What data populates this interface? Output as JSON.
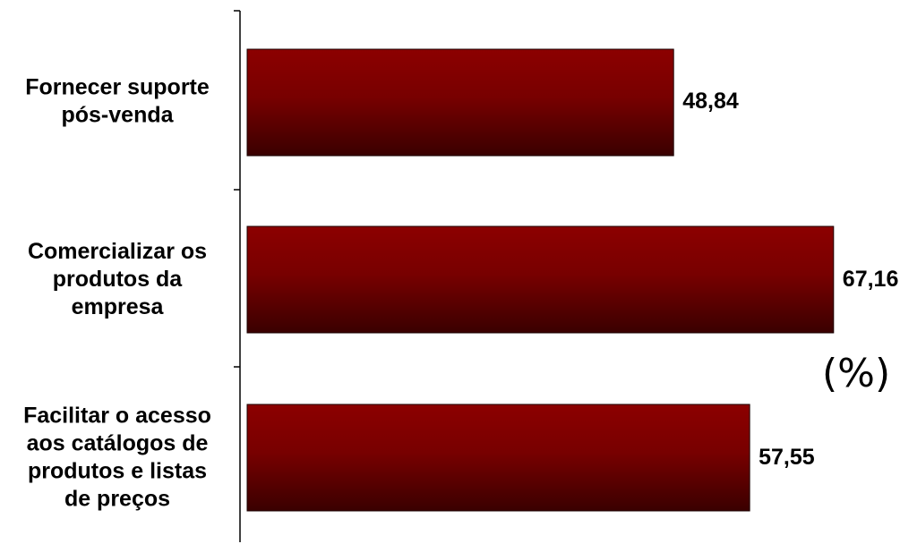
{
  "colors": {
    "bar_top": "#8c0000",
    "bar_bottom": "#3a0000",
    "bar_stroke": "#1a0000",
    "axis": "#000000"
  },
  "chart_data": {
    "type": "bar",
    "orientation": "horizontal",
    "categories": [
      [
        "Fornecer suporte",
        "pós-venda"
      ],
      [
        "Comercializar os",
        "produtos da",
        "empresa"
      ],
      [
        "Facilitar o acesso",
        "aos catálogos de",
        "produtos e listas",
        "de preços"
      ]
    ],
    "values": [
      48.84,
      67.16,
      57.55
    ],
    "value_labels": [
      "48,84",
      "67,16",
      "57,55"
    ],
    "unit_label": "(%)",
    "title": "",
    "xlabel": "",
    "ylabel": "",
    "xlim": [
      0,
      68
    ],
    "grid": false,
    "legend": "none"
  }
}
